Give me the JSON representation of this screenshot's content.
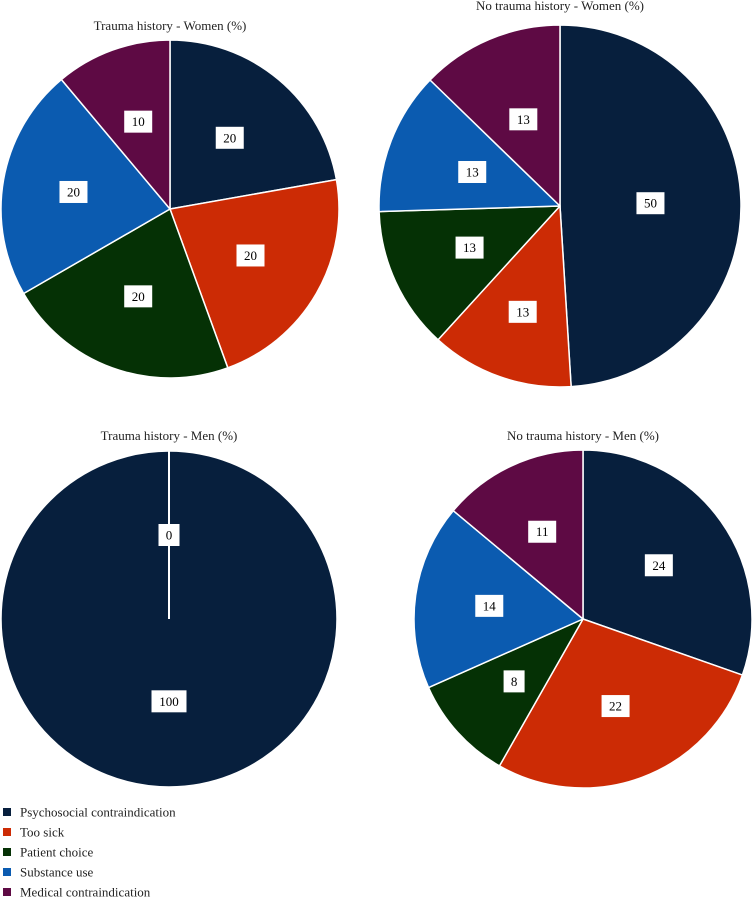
{
  "legend": {
    "items": [
      {
        "label": "Psychosocial contraindication",
        "color": "#071f3d"
      },
      {
        "label": "Too sick",
        "color": "#cc2b05"
      },
      {
        "label": "Patient choice",
        "color": "#053105"
      },
      {
        "label": "Substance use",
        "color": "#0b5bb0"
      },
      {
        "label": "Medical contraindication",
        "color": "#5e0a44"
      }
    ]
  },
  "chart_data": [
    {
      "type": "pie",
      "title": "Trauma history - Women (%)",
      "categories": [
        "Psychosocial contraindication",
        "Too sick",
        "Patient choice",
        "Substance use",
        "Medical contraindication"
      ],
      "values": [
        20,
        20,
        20,
        20,
        10
      ],
      "labels": [
        "20",
        "20",
        "20",
        "20",
        "10"
      ]
    },
    {
      "type": "pie",
      "title": "No trauma history - Women (%)",
      "categories": [
        "Psychosocial contraindication",
        "Too sick",
        "Patient choice",
        "Substance use",
        "Medical contraindication"
      ],
      "values": [
        50,
        13,
        13,
        13,
        13
      ],
      "labels": [
        "50",
        "13",
        "13",
        "13",
        "13"
      ]
    },
    {
      "type": "pie",
      "title": "Trauma history - Men (%)",
      "categories": [
        "Psychosocial contraindication",
        "Too sick",
        "Patient choice",
        "Substance use",
        "Medical contraindication"
      ],
      "values": [
        100,
        0,
        0,
        0,
        0
      ],
      "labels": [
        "100",
        "0",
        "",
        "",
        ""
      ]
    },
    {
      "type": "pie",
      "title": "No trauma history - Men (%)",
      "categories": [
        "Psychosocial contraindication",
        "Too sick",
        "Patient choice",
        "Substance use",
        "Medical contraindication"
      ],
      "values": [
        24,
        22,
        8,
        14,
        11
      ],
      "labels": [
        "24",
        "22",
        "8",
        "14",
        "11"
      ]
    }
  ]
}
